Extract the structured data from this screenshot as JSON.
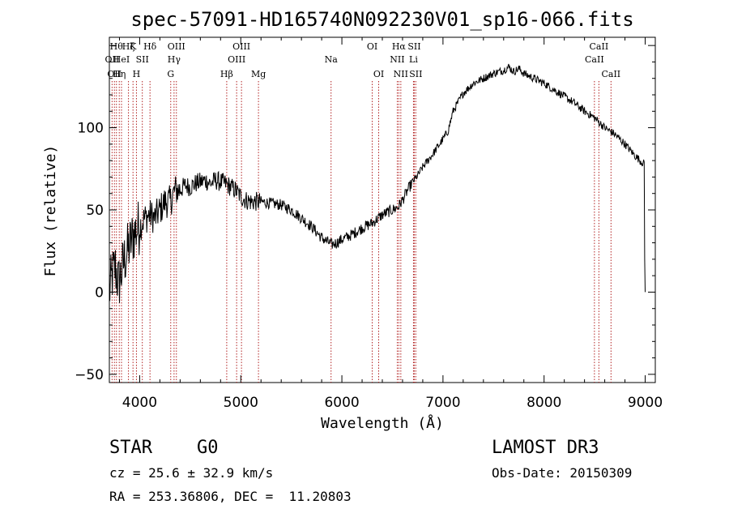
{
  "chart_data": {
    "type": "line",
    "title": "spec-57091-HD165740N092230V01_sp16-066.fits",
    "xlabel": "Wavelength (Å)",
    "ylabel": "Flux (relative)",
    "xlim": [
      3700,
      9100
    ],
    "ylim": [
      -55,
      155
    ],
    "xticks": [
      {
        "value": 4000,
        "label": "4000"
      },
      {
        "value": 5000,
        "label": "5000"
      },
      {
        "value": 6000,
        "label": "6000"
      },
      {
        "value": 7000,
        "label": "7000"
      },
      {
        "value": 8000,
        "label": "8000"
      },
      {
        "value": 9000,
        "label": "9000"
      }
    ],
    "yticks": [
      {
        "value": -50,
        "label": "−50"
      },
      {
        "value": 0,
        "label": "0"
      },
      {
        "value": 50,
        "label": "50"
      },
      {
        "value": 100,
        "label": "100"
      }
    ],
    "series": [
      {
        "name": "flux",
        "x": [
          3700,
          3730,
          3760,
          3790,
          3820,
          3850,
          3880,
          3910,
          3940,
          3970,
          4000,
          4050,
          4100,
          4150,
          4200,
          4250,
          4300,
          4350,
          4400,
          4450,
          4500,
          4550,
          4600,
          4650,
          4700,
          4750,
          4800,
          4850,
          4900,
          4950,
          5000,
          5050,
          5100,
          5150,
          5200,
          5300,
          5400,
          5500,
          5600,
          5700,
          5800,
          5850,
          5900,
          5950,
          6000,
          6100,
          6200,
          6300,
          6400,
          6500,
          6560,
          6600,
          6650,
          6700,
          6750,
          6800,
          6900,
          7000,
          7050,
          7100,
          7200,
          7300,
          7400,
          7500,
          7600,
          7650,
          7700,
          7750,
          7800,
          7900,
          8000,
          8100,
          8200,
          8300,
          8400,
          8500,
          8550,
          8600,
          8700,
          8800,
          8900,
          8950,
          8990,
          8995,
          9000
        ],
        "y": [
          0,
          10,
          15,
          5,
          12,
          20,
          25,
          30,
          35,
          38,
          40,
          45,
          47,
          45,
          50,
          55,
          55,
          62,
          62,
          65,
          64,
          66,
          67,
          68,
          66,
          68,
          67,
          66,
          64,
          62,
          58,
          56,
          55,
          55,
          55,
          54,
          53,
          50,
          45,
          40,
          33,
          31,
          29,
          30,
          32,
          35,
          39,
          42,
          47,
          50,
          52,
          56,
          62,
          67,
          71,
          76,
          84,
          93,
          98,
          110,
          121,
          127,
          130,
          133,
          135,
          137,
          134,
          136,
          133,
          130,
          127,
          123,
          119,
          115,
          110,
          106,
          103,
          100,
          96,
          90,
          83,
          80,
          78,
          20,
          0
        ]
      }
    ],
    "lines": [
      {
        "wave": 3727,
        "label": "OII",
        "row": 2
      },
      {
        "wave": 3750,
        "label": "OII",
        "row": 3
      },
      {
        "wave": 3770,
        "label": "Hθ",
        "row": 1
      },
      {
        "wave": 3798,
        "label": "Hη",
        "row": 3
      },
      {
        "wave": 3820,
        "label": "HeI",
        "row": 2
      },
      {
        "wave": 3889,
        "label": "Hζ",
        "row": 1
      },
      {
        "wave": 3934,
        "label": "K",
        "row": 1
      },
      {
        "wave": 3968,
        "label": "H",
        "row": 3
      },
      {
        "wave": 4026,
        "label": "SII",
        "row": 2
      },
      {
        "wave": 4102,
        "label": "Hδ",
        "row": 1
      },
      {
        "wave": 4307,
        "label": "G",
        "row": 3
      },
      {
        "wave": 4340,
        "label": "Hγ",
        "row": 2
      },
      {
        "wave": 4363,
        "label": "OIII",
        "row": 1
      },
      {
        "wave": 4861,
        "label": "Hβ",
        "row": 3
      },
      {
        "wave": 4959,
        "label": "OIII",
        "row": 2
      },
      {
        "wave": 5007,
        "label": "OIII",
        "row": 1
      },
      {
        "wave": 5175,
        "label": "Mg",
        "row": 3
      },
      {
        "wave": 5893,
        "label": "Na",
        "row": 2
      },
      {
        "wave": 6300,
        "label": "OI",
        "row": 1
      },
      {
        "wave": 6364,
        "label": "OI",
        "row": 3
      },
      {
        "wave": 6548,
        "label": "NII",
        "row": 2
      },
      {
        "wave": 6563,
        "label": "Hα",
        "row": 1
      },
      {
        "wave": 6583,
        "label": "NII",
        "row": 3
      },
      {
        "wave": 6708,
        "label": "Li",
        "row": 2
      },
      {
        "wave": 6716,
        "label": "SII",
        "row": 1
      },
      {
        "wave": 6731,
        "label": "SII",
        "row": 3
      },
      {
        "wave": 8498,
        "label": "CaII",
        "row": 2
      },
      {
        "wave": 8542,
        "label": "CaII",
        "row": 1
      },
      {
        "wave": 8662,
        "label": "CaII",
        "row": 3
      }
    ]
  },
  "info": {
    "object_class": "STAR",
    "subclass": "G0",
    "survey": "LAMOST DR3",
    "cz": "cz = 25.6 ± 32.9 km/s",
    "obs_date": "Obs-Date: 20150309",
    "coords": "RA = 253.36806, DEC =  11.20803"
  },
  "colors": {
    "spectrum": "#000000",
    "line_marker": "#b22222",
    "background": "#ffffff"
  }
}
